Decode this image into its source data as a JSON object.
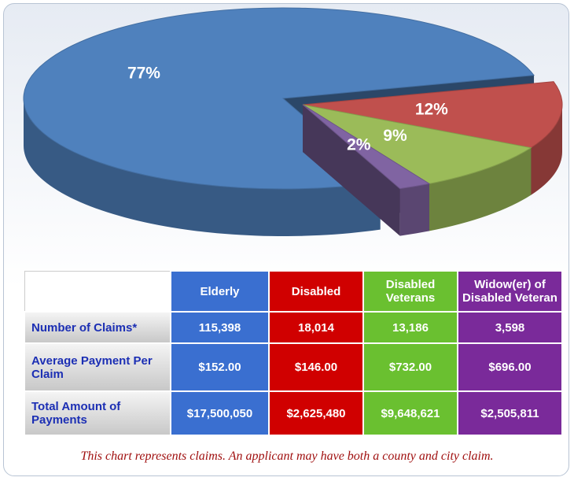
{
  "chart_data": {
    "type": "pie",
    "categories": [
      "Elderly",
      "Disabled",
      "Disabled Veterans",
      "Widow(er) of Disabled Veteran"
    ],
    "values": [
      77,
      12,
      9,
      2
    ],
    "value_labels": [
      "77%",
      "12%",
      "9%",
      "2%"
    ],
    "colors": [
      "#4f81bd",
      "#c0504d",
      "#9bbb59",
      "#8064a2"
    ]
  },
  "table": {
    "rows": [
      {
        "label": "Number of Claims*",
        "cells": [
          "115,398",
          "18,014",
          "13,186",
          "3,598"
        ]
      },
      {
        "label": "Average Payment Per Claim",
        "cells": [
          "$152.00",
          "$146.00",
          "$732.00",
          "$696.00"
        ]
      },
      {
        "label": "Total Amount of Payments",
        "cells": [
          "$17,500,050",
          "$2,625,480",
          "$9,648,621",
          "$2,505,811"
        ]
      }
    ]
  },
  "note": "This chart represents claims. An applicant may have both a county and city claim."
}
